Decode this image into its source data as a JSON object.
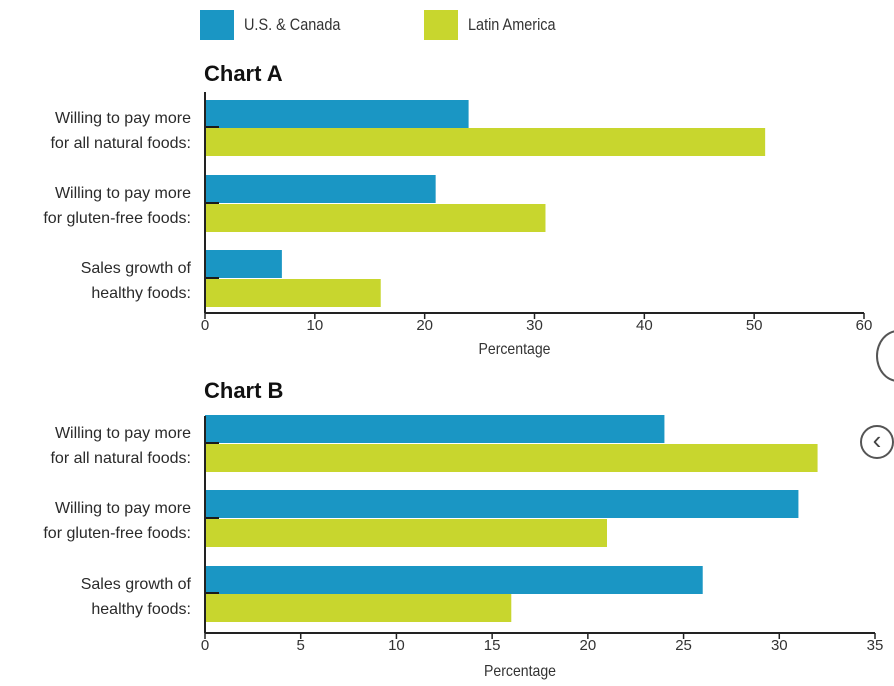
{
  "legend": [
    {
      "name": "U.S. & Canada",
      "color": "#1a96c4"
    },
    {
      "name": "Latin America",
      "color": "#c8d62e"
    }
  ],
  "chart_data": [
    {
      "type": "bar",
      "orientation": "horizontal",
      "title": "Chart A",
      "xlabel": "Percentage",
      "ylabel": "",
      "categories": [
        [
          "Willing to pay more",
          "for all natural foods:"
        ],
        [
          "Willing to pay more",
          "for gluten-free foods:"
        ],
        [
          "Sales growth of",
          "healthy foods:"
        ]
      ],
      "series": [
        {
          "name": "U.S. & Canada",
          "values": [
            24,
            21,
            7
          ]
        },
        {
          "name": "Latin America",
          "values": [
            51,
            31,
            16
          ]
        }
      ],
      "xlim": [
        0,
        60
      ],
      "xticks": [
        0,
        10,
        20,
        30,
        40,
        50,
        60
      ],
      "grid": false,
      "legend_position": "top"
    },
    {
      "type": "bar",
      "orientation": "horizontal",
      "title": "Chart B",
      "xlabel": "Percentage",
      "ylabel": "",
      "categories": [
        [
          "Willing to pay more",
          "for all natural foods:"
        ],
        [
          "Willing to pay more",
          "for gluten-free foods:"
        ],
        [
          "Sales growth of",
          "healthy foods:"
        ]
      ],
      "series": [
        {
          "name": "U.S. & Canada",
          "values": [
            24,
            31,
            26
          ]
        },
        {
          "name": "Latin America",
          "values": [
            32,
            21,
            16
          ]
        }
      ],
      "xlim": [
        0,
        35
      ],
      "xticks": [
        0,
        5,
        10,
        15,
        20,
        25,
        30,
        35
      ],
      "grid": false,
      "legend_position": "top"
    }
  ],
  "side_controls": [
    {
      "icon": "circle-button-icon"
    },
    {
      "icon": "chevron-left-icon",
      "glyph": "‹"
    }
  ]
}
